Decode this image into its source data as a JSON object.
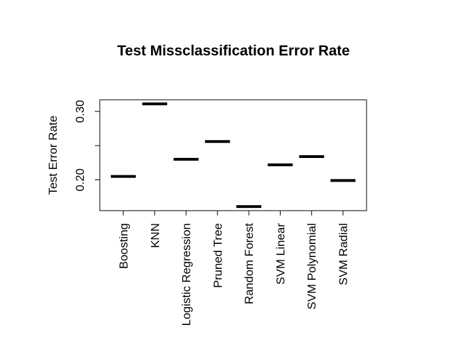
{
  "chart_data": {
    "type": "boxplot",
    "title": "Test Missclassification Error Rate",
    "xlabel": "",
    "ylabel": "Test Error Rate",
    "categories": [
      "Boosting",
      "KNN",
      "Logistic Regression",
      "Pruned Tree",
      "Random Forest",
      "SVM Linear",
      "SVM Polynomial",
      "SVM Radial"
    ],
    "values": [
      0.205,
      0.311,
      0.23,
      0.256,
      0.161,
      0.222,
      0.234,
      0.199
    ],
    "ylim": [
      0.155,
      0.317
    ],
    "yticks": [
      0.2,
      0.25,
      0.3
    ],
    "ytick_labels": [
      "0.20",
      "",
      "0.30"
    ],
    "grid": false,
    "line_color": "#000000"
  }
}
